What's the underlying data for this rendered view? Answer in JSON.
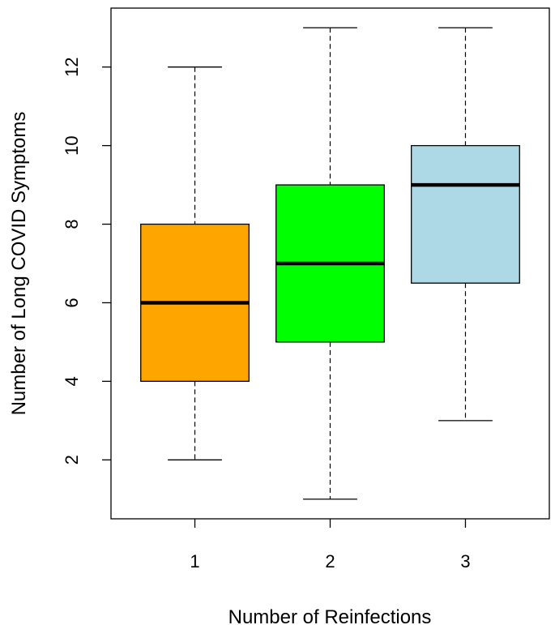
{
  "chart_data": {
    "type": "box",
    "xlabel": "Number of Reinfections",
    "ylabel": "Number of Long COVID Symptoms",
    "categories": [
      "1",
      "2",
      "3"
    ],
    "y_ticks": [
      "2",
      "4",
      "6",
      "8",
      "10",
      "12"
    ],
    "ylim": [
      0.5,
      13.5
    ],
    "grid": false,
    "legend": "none",
    "boxes": [
      {
        "category": "1",
        "min": 2,
        "q1": 4,
        "median": 6,
        "q3": 8,
        "max": 12,
        "color": "#FFA500"
      },
      {
        "category": "2",
        "min": 1,
        "q1": 5,
        "median": 7,
        "q3": 9,
        "max": 13,
        "color": "#00FF00"
      },
      {
        "category": "3",
        "min": 3,
        "q1": 6.5,
        "median": 9,
        "q3": 10,
        "max": 13,
        "color": "#ADD8E6"
      }
    ]
  }
}
